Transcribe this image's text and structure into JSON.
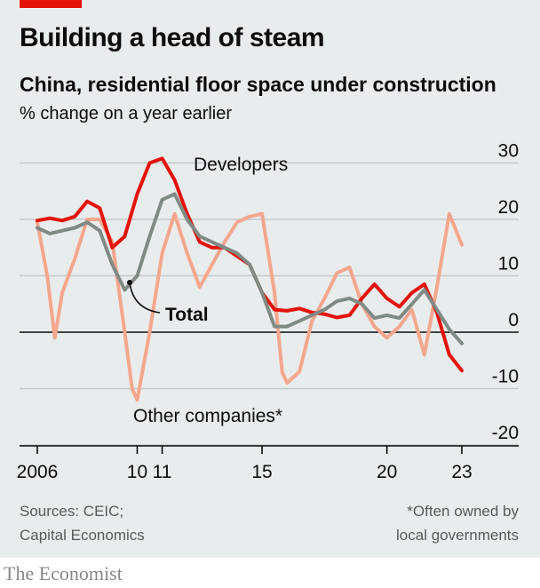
{
  "header": {
    "title": "Building a head of steam",
    "subtitle": "China, residential floor space under construction",
    "unit": "% change on a year earlier"
  },
  "footer": {
    "sources_line1": "Sources: CEIC;",
    "sources_line2": "Capital Economics",
    "note_line1": "*Often owned by",
    "note_line2": "local governments",
    "brand": "The Economist"
  },
  "colors": {
    "developers": "#e3120b",
    "total": "#808a85",
    "other": "#f4a68e",
    "axis": "#0c0c0c",
    "grid": "#c4c8c8",
    "background": "#e9ecec",
    "accent": "#e3120b"
  },
  "chart_data": {
    "type": "line",
    "title": "Building a head of steam",
    "subtitle": "China, residential floor space under construction",
    "ylabel": "% change on a year earlier",
    "xlabel": "",
    "xlim": [
      2006,
      2024.5
    ],
    "ylim": [
      -20,
      30
    ],
    "yticks": [
      30,
      20,
      10,
      0,
      -10,
      -20
    ],
    "ytick_labels": [
      "30",
      "20",
      "10",
      "0",
      "-10",
      "-20"
    ],
    "xticks": [
      2006,
      2010,
      2011,
      2015,
      2020,
      2023
    ],
    "xtick_labels": [
      "2006",
      "10",
      "11",
      "15",
      "20",
      "23"
    ],
    "grid": true,
    "series": [
      {
        "name": "Developers",
        "key": "developers",
        "x": [
          2006.0,
          2006.5,
          2007.0,
          2007.5,
          2008.0,
          2008.5,
          2009.0,
          2009.5,
          2010.0,
          2010.5,
          2011.0,
          2011.5,
          2012.0,
          2012.5,
          2013.0,
          2013.5,
          2014.0,
          2014.5,
          2015.0,
          2015.5,
          2016.0,
          2016.5,
          2017.0,
          2017.5,
          2018.0,
          2018.5,
          2019.0,
          2019.5,
          2020.0,
          2020.5,
          2021.0,
          2021.5,
          2022.0,
          2022.5,
          2023.0
        ],
        "values": [
          19.8,
          20.2,
          19.8,
          20.5,
          23.2,
          22.0,
          15.0,
          17.0,
          24.5,
          30.0,
          30.8,
          27.0,
          21.0,
          16.0,
          15.0,
          15.0,
          13.5,
          12.0,
          7.0,
          4.0,
          3.8,
          4.2,
          3.5,
          3.2,
          2.6,
          3.0,
          6.0,
          8.5,
          6.0,
          4.5,
          7.0,
          8.5,
          3.5,
          -4.0,
          -6.8
        ]
      },
      {
        "name": "Total",
        "key": "total",
        "x": [
          2006.0,
          2006.5,
          2007.0,
          2007.5,
          2008.0,
          2008.5,
          2009.0,
          2009.5,
          2010.0,
          2010.5,
          2011.0,
          2011.5,
          2012.0,
          2012.5,
          2013.0,
          2013.5,
          2014.0,
          2014.5,
          2015.0,
          2015.5,
          2016.0,
          2016.5,
          2017.0,
          2017.5,
          2018.0,
          2018.5,
          2019.0,
          2019.5,
          2020.0,
          2020.5,
          2021.0,
          2021.5,
          2022.0,
          2022.5,
          2023.0
        ],
        "values": [
          18.5,
          17.5,
          18.0,
          18.5,
          19.5,
          18.0,
          12.0,
          7.5,
          10.0,
          17.0,
          23.5,
          24.5,
          20.0,
          17.0,
          16.0,
          15.0,
          14.0,
          12.0,
          7.0,
          1.0,
          1.0,
          2.0,
          3.0,
          4.0,
          5.5,
          6.0,
          5.0,
          2.5,
          3.0,
          2.5,
          5.0,
          7.5,
          4.0,
          0.5,
          -2.0
        ]
      },
      {
        "name": "Other companies*",
        "key": "other",
        "x": [
          2006.0,
          2006.4,
          2006.7,
          2007.0,
          2007.5,
          2008.0,
          2008.5,
          2009.0,
          2009.5,
          2009.8,
          2010.0,
          2010.5,
          2011.0,
          2011.5,
          2012.0,
          2012.5,
          2013.0,
          2013.5,
          2014.0,
          2014.5,
          2015.0,
          2015.5,
          2015.8,
          2016.0,
          2016.5,
          2017.0,
          2017.5,
          2018.0,
          2018.5,
          2019.0,
          2019.5,
          2020.0,
          2020.5,
          2021.0,
          2021.5,
          2022.0,
          2022.5,
          2023.0
        ],
        "values": [
          19.5,
          10.0,
          -1.0,
          7.0,
          13.0,
          20.0,
          20.0,
          16.0,
          0.0,
          -10.0,
          -12.0,
          0.0,
          14.0,
          21.0,
          14.0,
          8.0,
          12.0,
          16.0,
          19.5,
          20.5,
          21.0,
          7.0,
          -7.0,
          -9.0,
          -7.0,
          2.0,
          6.0,
          10.5,
          11.5,
          5.0,
          1.0,
          -1.0,
          1.0,
          4.0,
          -4.0,
          8.0,
          21.0,
          15.5
        ]
      }
    ],
    "annotations": [
      {
        "key": "developers",
        "text": "Developers"
      },
      {
        "key": "total",
        "text": "Total"
      },
      {
        "key": "other",
        "text": "Other companies*"
      }
    ]
  }
}
